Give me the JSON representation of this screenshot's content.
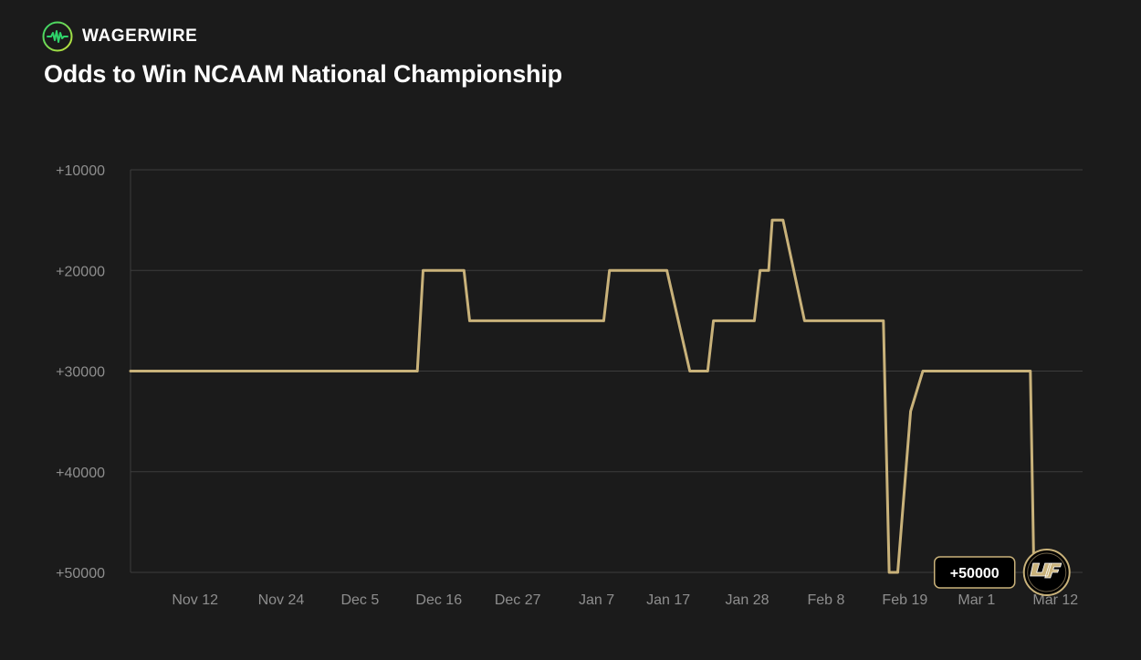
{
  "brand": {
    "name": "WAGERWIRE",
    "logo_icon": "pulse-circle-icon",
    "logo_color": "#2fd36a"
  },
  "colors": {
    "background": "#1b1b1b",
    "line": "#c9b27a",
    "grid": "#3c3c3c",
    "tick_text": "#8e8e8e",
    "badge_border": "#c9b27a",
    "team_logo_fill": "#c9b27a"
  },
  "chart_data": {
    "type": "line",
    "title": "Odds to Win NCAAM National Championship",
    "xlabel": "",
    "ylabel": "",
    "y_reversed": true,
    "ylim": [
      10000,
      50000
    ],
    "y_ticks": [
      10000,
      20000,
      30000,
      40000,
      50000
    ],
    "y_tick_labels": [
      "+10000",
      "+20000",
      "+30000",
      "+40000",
      "+50000"
    ],
    "x_tick_labels": [
      "Nov 12",
      "Nov 24",
      "Dec 5",
      "Dec 16",
      "Dec 27",
      "Jan 7",
      "Jan 17",
      "Jan 28",
      "Feb 8",
      "Feb 19",
      "Mar 1",
      "Mar 12"
    ],
    "x_tick_days": [
      12,
      24,
      35,
      46,
      57,
      68,
      78,
      89,
      100,
      111,
      121,
      132
    ],
    "xlim": [
      3,
      134
    ],
    "grid": true,
    "legend": "none",
    "series": [
      {
        "days": [
          3,
          43,
          43.8,
          49.5,
          50.3,
          56.5,
          57.3,
          69,
          69.8,
          70.6,
          77,
          77.8,
          81,
          81.8,
          83.5,
          84.3,
          88,
          88.8,
          90,
          90.8,
          92,
          92.5,
          93.3,
          94,
          97,
          98,
          99,
          104,
          108,
          108.8,
          110,
          111.8,
          113.5,
          116.5,
          122,
          127,
          128.5,
          129
        ],
        "values": [
          30000,
          30000,
          20000,
          20000,
          25000,
          25000,
          25000,
          25000,
          20000,
          20000,
          20000,
          20000,
          30000,
          30000,
          30000,
          25000,
          25000,
          25000,
          25000,
          20000,
          20000,
          15000,
          15000,
          15000,
          25000,
          25000,
          25000,
          25000,
          25000,
          50000,
          50000,
          34000,
          30000,
          30000,
          30000,
          30000,
          30000,
          50000
        ]
      }
    ],
    "end_label": "+50000",
    "end_marker_icon": "ucf-knights-logo-icon"
  }
}
